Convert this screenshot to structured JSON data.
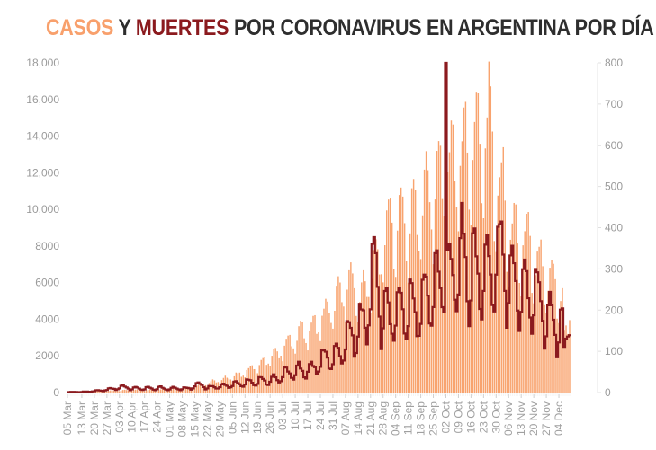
{
  "title": {
    "cases_word": "CASOS",
    "and_word": "Y",
    "deaths_word": "MUERTES",
    "rest": "POR CORONAVIRUS EN ARGENTINA POR DÍA"
  },
  "colors": {
    "cases": "#f8a36e",
    "deaths": "#8b1a1e",
    "title_text": "#2e2e2e",
    "axis_text": "#9a9a9a"
  },
  "chart_data": {
    "type": "bar",
    "title": "CASOS Y MUERTES POR CORONAVIRUS EN ARGENTINA POR DÍA",
    "xlabel": "",
    "ylabel": "Casos",
    "y2label": "Muertes",
    "ylim": [
      0,
      18000
    ],
    "y2lim": [
      0,
      800
    ],
    "grid": false,
    "legend": "title-colored",
    "yticks": [
      {
        "value": 0,
        "label": "0"
      },
      {
        "value": 2000,
        "label": "2000"
      },
      {
        "value": 4000,
        "label": "4000"
      },
      {
        "value": 6000,
        "label": "6000"
      },
      {
        "value": 8000,
        "label": "8000"
      },
      {
        "value": 10000,
        "label": "10,000"
      },
      {
        "value": 12000,
        "label": "12,000"
      },
      {
        "value": 14000,
        "label": "14,000"
      },
      {
        "value": 16000,
        "label": "16,000"
      },
      {
        "value": 18000,
        "label": "18,000"
      }
    ],
    "y2ticks": [
      {
        "value": 0,
        "label": "0"
      },
      {
        "value": 100,
        "label": "100"
      },
      {
        "value": 200,
        "label": "200"
      },
      {
        "value": 300,
        "label": "300"
      },
      {
        "value": 400,
        "label": "400"
      },
      {
        "value": 500,
        "label": "500"
      },
      {
        "value": 600,
        "label": "600"
      },
      {
        "value": 700,
        "label": "700"
      },
      {
        "value": 800,
        "label": "800"
      }
    ],
    "xticks": [
      "05 Mar",
      "13 Mar",
      "20 Mar",
      "27 Mar",
      "03 Apr",
      "10 Apr",
      "17 Apr",
      "24 Apr",
      "01 May",
      "08 May",
      "15 May",
      "22 May",
      "29 May",
      "05 Jun",
      "12 Jun",
      "19 Jun",
      "26 Jun",
      "03 Jul",
      "10 Jul",
      "17 Jul",
      "24 Jul",
      "31 Jul",
      "07 Aug",
      "14 Aug",
      "21 Aug",
      "28 Aug",
      "04 Sep",
      "11 Sep",
      "18 Sep",
      "25 Sep",
      "02 Oct",
      "09 Oct",
      "16 Oct",
      "23 Oct",
      "30 Oct",
      "06 Nov",
      "13 Nov",
      "20 Nov",
      "27 Nov",
      "04 Dec"
    ],
    "xtick_day_index": [
      0,
      8,
      15,
      22,
      29,
      36,
      43,
      50,
      57,
      64,
      71,
      78,
      85,
      92,
      99,
      106,
      113,
      120,
      127,
      134,
      141,
      148,
      155,
      162,
      169,
      176,
      183,
      190,
      197,
      204,
      211,
      218,
      225,
      232,
      239,
      246,
      253,
      260,
      267,
      274
    ],
    "start_date": "05 Mar",
    "series": [
      {
        "name": "Casos",
        "axis": "left",
        "type": "bar",
        "weekly_peaks": [
          {
            "week_start": "05 Mar",
            "value": 20
          },
          {
            "week_start": "12 Mar",
            "value": 30
          },
          {
            "week_start": "19 Mar",
            "value": 100
          },
          {
            "week_start": "26 Mar",
            "value": 130
          },
          {
            "week_start": "02 Apr",
            "value": 160
          },
          {
            "week_start": "09 Apr",
            "value": 180
          },
          {
            "week_start": "16 Apr",
            "value": 170
          },
          {
            "week_start": "23 Apr",
            "value": 190
          },
          {
            "week_start": "30 Apr",
            "value": 250
          },
          {
            "week_start": "07 May",
            "value": 330
          },
          {
            "week_start": "14 May",
            "value": 480
          },
          {
            "week_start": "21 May",
            "value": 720
          },
          {
            "week_start": "28 May",
            "value": 950
          },
          {
            "week_start": "04 Jun",
            "value": 1200
          },
          {
            "week_start": "11 Jun",
            "value": 1600
          },
          {
            "week_start": "18 Jun",
            "value": 2100
          },
          {
            "week_start": "25 Jun",
            "value": 2600
          },
          {
            "week_start": "02 Jul",
            "value": 3300
          },
          {
            "week_start": "09 Jul",
            "value": 4000
          },
          {
            "week_start": "16 Jul",
            "value": 4400
          },
          {
            "week_start": "23 Jul",
            "value": 5600
          },
          {
            "week_start": "30 Jul",
            "value": 6400
          },
          {
            "week_start": "06 Aug",
            "value": 7600
          },
          {
            "week_start": "13 Aug",
            "value": 7100
          },
          {
            "week_start": "20 Aug",
            "value": 8900
          },
          {
            "week_start": "27 Aug",
            "value": 11700
          },
          {
            "week_start": "03 Sep",
            "value": 12300
          },
          {
            "week_start": "10 Sep",
            "value": 12200
          },
          {
            "week_start": "17 Sep",
            "value": 13500
          },
          {
            "week_start": "24 Sep",
            "value": 14400
          },
          {
            "week_start": "01 Oct",
            "value": 16000
          },
          {
            "week_start": "08 Oct",
            "value": 16700
          },
          {
            "week_start": "15 Oct",
            "value": 17100
          },
          {
            "week_start": "22 Oct",
            "value": 18300
          },
          {
            "week_start": "29 Oct",
            "value": 14000
          },
          {
            "week_start": "05 Nov",
            "value": 11000
          },
          {
            "week_start": "12 Nov",
            "value": 10800
          },
          {
            "week_start": "19 Nov",
            "value": 9000
          },
          {
            "week_start": "26 Nov",
            "value": 8000
          },
          {
            "week_start": "03 Dec",
            "value": 7000
          }
        ]
      },
      {
        "name": "Muertes",
        "axis": "right",
        "type": "step-line",
        "weekly_peaks": [
          {
            "week_start": "05 Mar",
            "value": 2
          },
          {
            "week_start": "12 Mar",
            "value": 3
          },
          {
            "week_start": "19 Mar",
            "value": 6
          },
          {
            "week_start": "26 Mar",
            "value": 12
          },
          {
            "week_start": "02 Apr",
            "value": 18
          },
          {
            "week_start": "09 Apr",
            "value": 14
          },
          {
            "week_start": "16 Apr",
            "value": 14
          },
          {
            "week_start": "23 Apr",
            "value": 15
          },
          {
            "week_start": "30 Apr",
            "value": 14
          },
          {
            "week_start": "07 May",
            "value": 14
          },
          {
            "week_start": "14 May",
            "value": 25
          },
          {
            "week_start": "21 May",
            "value": 18
          },
          {
            "week_start": "28 May",
            "value": 22
          },
          {
            "week_start": "04 Jun",
            "value": 30
          },
          {
            "week_start": "11 Jun",
            "value": 35
          },
          {
            "week_start": "18 Jun",
            "value": 40
          },
          {
            "week_start": "25 Jun",
            "value": 45
          },
          {
            "week_start": "02 Jul",
            "value": 65
          },
          {
            "week_start": "09 Jul",
            "value": 75
          },
          {
            "week_start": "16 Jul",
            "value": 85
          },
          {
            "week_start": "23 Jul",
            "value": 120
          },
          {
            "week_start": "30 Jul",
            "value": 130
          },
          {
            "week_start": "06 Aug",
            "value": 185
          },
          {
            "week_start": "13 Aug",
            "value": 235
          },
          {
            "week_start": "20 Aug",
            "value": 385
          },
          {
            "week_start": "27 Aug",
            "value": 260
          },
          {
            "week_start": "03 Sep",
            "value": 280
          },
          {
            "week_start": "10 Sep",
            "value": 290
          },
          {
            "week_start": "17 Sep",
            "value": 320
          },
          {
            "week_start": "24 Sep",
            "value": 390
          },
          {
            "week_start": "01 Oct",
            "value": 800
          },
          {
            "week_start": "08 Oct",
            "value": 460
          },
          {
            "week_start": "15 Oct",
            "value": 420
          },
          {
            "week_start": "22 Oct",
            "value": 430
          },
          {
            "week_start": "29 Oct",
            "value": 480
          },
          {
            "week_start": "05 Nov",
            "value": 370
          },
          {
            "week_start": "12 Nov",
            "value": 340
          },
          {
            "week_start": "19 Nov",
            "value": 320
          },
          {
            "week_start": "26 Nov",
            "value": 260
          },
          {
            "week_start": "03 Dec",
            "value": 220
          }
        ]
      }
    ],
    "end_values": {
      "Casos": 3600,
      "Muertes": 125
    }
  }
}
